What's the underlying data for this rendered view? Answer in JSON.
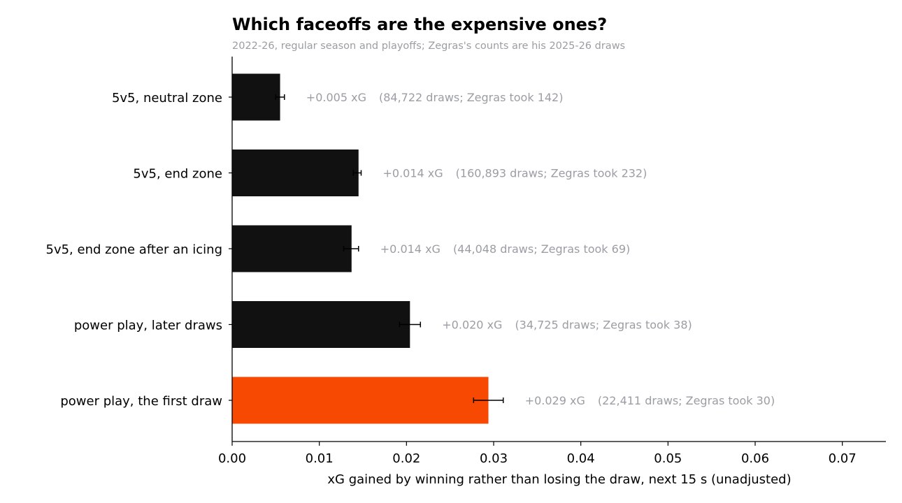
{
  "chart_data": {
    "type": "bar",
    "orientation": "horizontal",
    "title": "Which faceoffs are the expensive ones?",
    "subtitle": "2022-26, regular season and playoffs; Zegras's counts are his 2025-26 draws",
    "xlabel": "xG gained by winning rather than losing the draw, next 15 s (unadjusted)",
    "ylabel": "",
    "xlim": [
      0,
      0.075
    ],
    "xticks": [
      0.0,
      0.01,
      0.02,
      0.03,
      0.04,
      0.05,
      0.06,
      0.07
    ],
    "xtick_labels": [
      "0.00",
      "0.01",
      "0.02",
      "0.03",
      "0.04",
      "0.05",
      "0.06",
      "0.07"
    ],
    "grid": false,
    "colors": {
      "default": "#111111",
      "highlight": "#f74902",
      "label": "#9a9da3",
      "error_bar": "#000000"
    },
    "categories": [
      "5v5, neutral zone",
      "5v5, end zone",
      "5v5, end zone after an icing",
      "power play, later draws",
      "power play, the first draw"
    ],
    "values": [
      0.0055,
      0.0145,
      0.0137,
      0.0204,
      0.0294
    ],
    "error_low": [
      0.005,
      0.0139,
      0.0128,
      0.0192,
      0.0277
    ],
    "error_high": [
      0.006,
      0.0148,
      0.0145,
      0.0216,
      0.0311
    ],
    "highlight": [
      false,
      false,
      false,
      false,
      true
    ],
    "value_labels": [
      "+0.005 xG",
      "+0.014 xG",
      "+0.014 xG",
      "+0.020 xG",
      "+0.029 xG"
    ],
    "count_labels": [
      "(84,722 draws; Zegras took 142)",
      "(160,893 draws; Zegras took 232)",
      "(44,048 draws; Zegras took 69)",
      "(34,725 draws; Zegras took 38)",
      "(22,411 draws; Zegras took 30)"
    ]
  }
}
